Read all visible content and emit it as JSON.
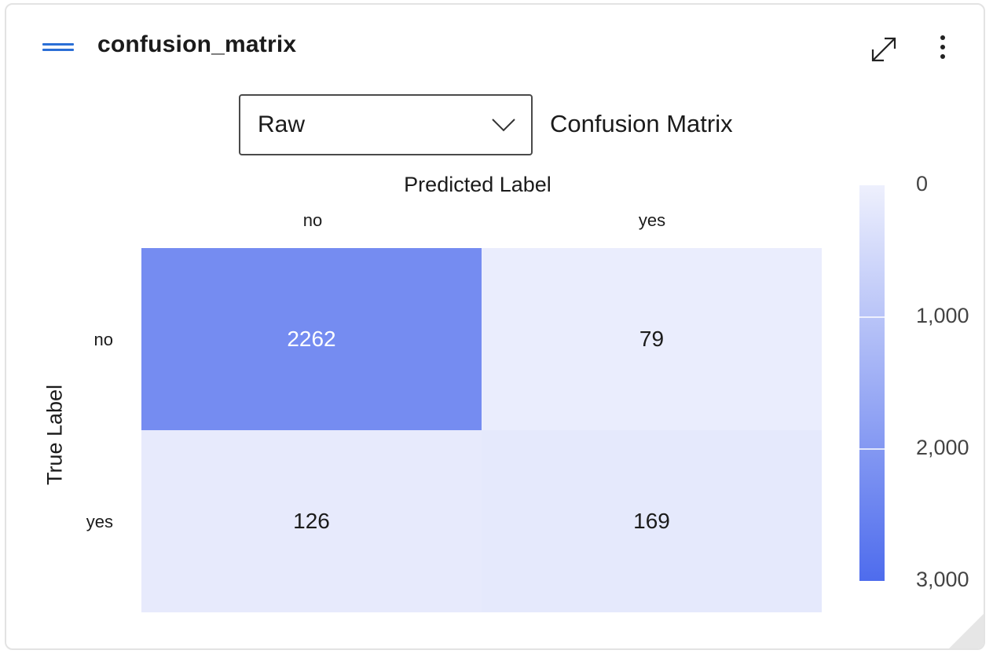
{
  "panel": {
    "title": "confusion_matrix",
    "menu_icon": "hamburger-icon",
    "expand_icon": "expand-diagonal-icon",
    "more_icon": "more-vertical-icon",
    "resize_icon": "resize-corner-icon",
    "accent_color": "#2b6fd6"
  },
  "controls": {
    "dropdown_value": "Raw",
    "dropdown_icon": "chevron-down-icon"
  },
  "chart_data": {
    "type": "heatmap",
    "title": "Confusion Matrix",
    "xlabel": "Predicted Label",
    "ylabel": "True Label",
    "x_categories": [
      "no",
      "yes"
    ],
    "y_categories": [
      "no",
      "yes"
    ],
    "values": [
      [
        2262,
        79
      ],
      [
        126,
        169
      ]
    ],
    "colorscale": {
      "min": 0,
      "max": 3000,
      "ticks": [
        0,
        1000,
        2000,
        3000
      ],
      "tick_labels": [
        "0",
        "1,000",
        "2,000",
        "3,000"
      ],
      "low_color": "#eef0fd",
      "high_color": "#4e6ced",
      "reversed": true
    },
    "legend_position": "right"
  }
}
